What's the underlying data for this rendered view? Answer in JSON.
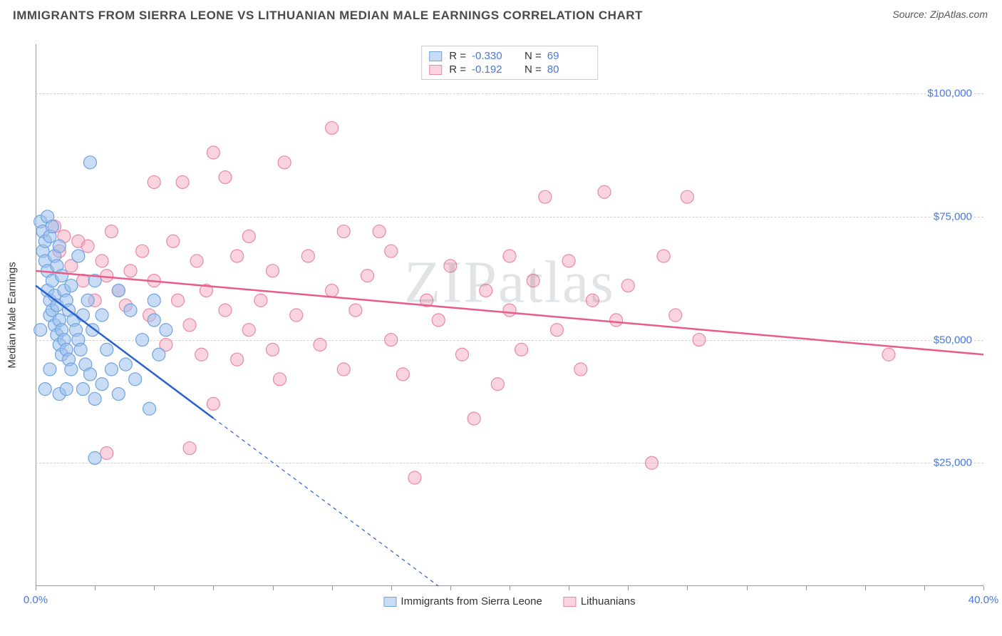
{
  "title": "IMMIGRANTS FROM SIERRA LEONE VS LITHUANIAN MEDIAN MALE EARNINGS CORRELATION CHART",
  "source_label": "Source:",
  "source_name": "ZipAtlas.com",
  "watermark": "ZIPatlas",
  "yaxis_title": "Median Male Earnings",
  "chart": {
    "type": "scatter",
    "xlim": [
      0,
      40
    ],
    "ylim": [
      0,
      110000
    ],
    "xtick_labels": {
      "start": "0.0%",
      "end": "40.0%"
    },
    "xtick_positions": [
      0,
      2.5,
      5,
      7.5,
      10,
      12.5,
      15,
      17.5,
      20,
      22.5,
      25,
      27.5,
      30,
      32.5,
      35,
      37.5,
      40
    ],
    "ytick_values": [
      25000,
      50000,
      75000,
      100000
    ],
    "ytick_labels": [
      "$25,000",
      "$50,000",
      "$75,000",
      "$100,000"
    ],
    "grid_color": "#d0d0d0",
    "background_color": "#ffffff",
    "marker_radius": 9,
    "marker_stroke_width": 1.2,
    "series": [
      {
        "id": "sierra_leone",
        "label": "Immigrants from Sierra Leone",
        "fill": "rgba(154, 192, 236, 0.55)",
        "stroke": "#6fa3e0",
        "trend_stroke": "#2b5fd0",
        "trend_width": 2.5,
        "trend_dash_after_x": 7.5,
        "R": "-0.330",
        "N": "69",
        "trend": {
          "x1": 0,
          "y1": 61000,
          "x2": 17,
          "y2": 0
        },
        "points": [
          [
            0.2,
            74000
          ],
          [
            0.3,
            72000
          ],
          [
            0.3,
            68000
          ],
          [
            0.4,
            70000
          ],
          [
            0.4,
            66000
          ],
          [
            0.5,
            75000
          ],
          [
            0.5,
            64000
          ],
          [
            0.5,
            60000
          ],
          [
            0.6,
            71000
          ],
          [
            0.6,
            58000
          ],
          [
            0.6,
            55000
          ],
          [
            0.7,
            73000
          ],
          [
            0.7,
            62000
          ],
          [
            0.7,
            56000
          ],
          [
            0.8,
            67000
          ],
          [
            0.8,
            59000
          ],
          [
            0.8,
            53000
          ],
          [
            0.9,
            65000
          ],
          [
            0.9,
            57000
          ],
          [
            0.9,
            51000
          ],
          [
            1.0,
            69000
          ],
          [
            1.0,
            54000
          ],
          [
            1.0,
            49000
          ],
          [
            1.1,
            63000
          ],
          [
            1.1,
            52000
          ],
          [
            1.1,
            47000
          ],
          [
            1.2,
            60000
          ],
          [
            1.2,
            50000
          ],
          [
            1.3,
            58000
          ],
          [
            1.3,
            48000
          ],
          [
            1.4,
            56000
          ],
          [
            1.4,
            46000
          ],
          [
            1.5,
            61000
          ],
          [
            1.5,
            44000
          ],
          [
            1.6,
            54000
          ],
          [
            1.7,
            52000
          ],
          [
            1.8,
            50000
          ],
          [
            1.8,
            67000
          ],
          [
            1.9,
            48000
          ],
          [
            2.0,
            55000
          ],
          [
            2.0,
            40000
          ],
          [
            2.1,
            45000
          ],
          [
            2.2,
            58000
          ],
          [
            2.3,
            43000
          ],
          [
            2.4,
            52000
          ],
          [
            2.5,
            62000
          ],
          [
            2.5,
            38000
          ],
          [
            2.8,
            55000
          ],
          [
            2.8,
            41000
          ],
          [
            3.0,
            48000
          ],
          [
            3.2,
            44000
          ],
          [
            3.5,
            60000
          ],
          [
            3.5,
            39000
          ],
          [
            3.8,
            45000
          ],
          [
            4.0,
            56000
          ],
          [
            4.2,
            42000
          ],
          [
            4.5,
            50000
          ],
          [
            4.8,
            36000
          ],
          [
            5.0,
            58000
          ],
          [
            5.0,
            54000
          ],
          [
            5.2,
            47000
          ],
          [
            5.5,
            52000
          ],
          [
            2.3,
            86000
          ],
          [
            2.5,
            26000
          ],
          [
            1.0,
            39000
          ],
          [
            1.3,
            40000
          ],
          [
            0.4,
            40000
          ],
          [
            0.6,
            44000
          ],
          [
            0.2,
            52000
          ]
        ]
      },
      {
        "id": "lithuanians",
        "label": "Lithuanians",
        "fill": "rgba(244, 168, 190, 0.5)",
        "stroke": "#e989a8",
        "trend_stroke": "#e95c8a",
        "trend_width": 2.5,
        "trend_dash_after_x": 40,
        "R": "-0.192",
        "N": "80",
        "trend": {
          "x1": 0,
          "y1": 64000,
          "x2": 40,
          "y2": 47000
        },
        "points": [
          [
            0.8,
            73000
          ],
          [
            1.0,
            68000
          ],
          [
            1.2,
            71000
          ],
          [
            1.5,
            65000
          ],
          [
            1.8,
            70000
          ],
          [
            2.0,
            62000
          ],
          [
            2.2,
            69000
          ],
          [
            2.5,
            58000
          ],
          [
            2.8,
            66000
          ],
          [
            3.0,
            63000
          ],
          [
            3.2,
            72000
          ],
          [
            3.5,
            60000
          ],
          [
            3.8,
            57000
          ],
          [
            4.0,
            64000
          ],
          [
            4.5,
            68000
          ],
          [
            4.8,
            55000
          ],
          [
            5.0,
            62000
          ],
          [
            5.0,
            82000
          ],
          [
            5.5,
            49000
          ],
          [
            5.8,
            70000
          ],
          [
            6.0,
            58000
          ],
          [
            6.2,
            82000
          ],
          [
            6.5,
            53000
          ],
          [
            6.8,
            66000
          ],
          [
            7.0,
            47000
          ],
          [
            7.2,
            60000
          ],
          [
            7.5,
            88000
          ],
          [
            7.5,
            37000
          ],
          [
            8.0,
            56000
          ],
          [
            8.0,
            83000
          ],
          [
            8.5,
            67000
          ],
          [
            8.5,
            46000
          ],
          [
            9.0,
            52000
          ],
          [
            9.0,
            71000
          ],
          [
            9.5,
            58000
          ],
          [
            10.0,
            48000
          ],
          [
            10.0,
            64000
          ],
          [
            10.3,
            42000
          ],
          [
            10.5,
            86000
          ],
          [
            11.0,
            55000
          ],
          [
            11.5,
            67000
          ],
          [
            12.0,
            49000
          ],
          [
            12.5,
            93000
          ],
          [
            12.5,
            60000
          ],
          [
            13.0,
            72000
          ],
          [
            13.0,
            44000
          ],
          [
            13.5,
            56000
          ],
          [
            14.0,
            63000
          ],
          [
            14.5,
            72000
          ],
          [
            15.0,
            50000
          ],
          [
            15.0,
            68000
          ],
          [
            15.5,
            43000
          ],
          [
            16.0,
            22000
          ],
          [
            16.5,
            58000
          ],
          [
            17.0,
            54000
          ],
          [
            17.5,
            65000
          ],
          [
            18.0,
            47000
          ],
          [
            18.5,
            34000
          ],
          [
            19.0,
            60000
          ],
          [
            19.5,
            41000
          ],
          [
            20.0,
            67000
          ],
          [
            20.0,
            56000
          ],
          [
            20.5,
            48000
          ],
          [
            21.0,
            62000
          ],
          [
            21.5,
            79000
          ],
          [
            22.0,
            52000
          ],
          [
            22.5,
            66000
          ],
          [
            23.0,
            44000
          ],
          [
            23.5,
            58000
          ],
          [
            24.0,
            80000
          ],
          [
            24.5,
            54000
          ],
          [
            25.0,
            61000
          ],
          [
            26.0,
            25000
          ],
          [
            26.5,
            67000
          ],
          [
            27.0,
            55000
          ],
          [
            27.5,
            79000
          ],
          [
            28.0,
            50000
          ],
          [
            6.5,
            28000
          ],
          [
            36.0,
            47000
          ],
          [
            3.0,
            27000
          ]
        ]
      }
    ]
  }
}
